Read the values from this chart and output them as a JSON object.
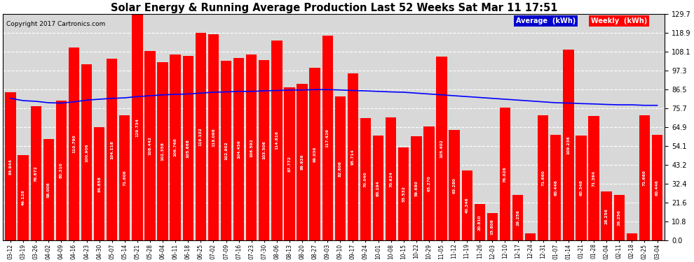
{
  "title": "Solar Energy & Running Average Production Last 52 Weeks Sat Mar 11 17:51",
  "copyright": "Copyright 2017 Cartronics.com",
  "bar_color": "#ff0000",
  "avg_line_color": "#0000ff",
  "background_color": "#ffffff",
  "plot_bg_color": "#d8d8d8",
  "grid_color": "#ffffff",
  "yticks": [
    0.0,
    10.8,
    21.6,
    32.4,
    43.2,
    54.1,
    64.9,
    75.7,
    86.5,
    97.3,
    108.1,
    118.9,
    129.7
  ],
  "legend_avg_label": "Average  (kWh)",
  "legend_weekly_label": "Weekly  (kWh)",
  "legend_avg_color": "#0000cc",
  "legend_weekly_color": "#ff0000",
  "categories": [
    "03-12",
    "03-19",
    "03-26",
    "04-02",
    "04-09",
    "04-16",
    "04-23",
    "04-30",
    "05-07",
    "05-14",
    "05-21",
    "05-28",
    "06-04",
    "06-11",
    "06-18",
    "06-25",
    "07-02",
    "07-09",
    "07-16",
    "07-23",
    "07-30",
    "08-06",
    "08-13",
    "08-20",
    "08-27",
    "09-03",
    "09-10",
    "09-17",
    "09-24",
    "10-01",
    "10-08",
    "10-15",
    "10-22",
    "10-29",
    "11-05",
    "11-12",
    "11-19",
    "11-26",
    "12-03",
    "12-10",
    "12-17",
    "12-24",
    "12-31",
    "01-07",
    "01-14",
    "01-21",
    "01-28",
    "02-04",
    "02-11",
    "02-18",
    "02-25",
    "03-04"
  ],
  "weekly_values": [
    84.944,
    49.128,
    76.872,
    58.008,
    80.31,
    110.79,
    100.906,
    64.858,
    104.118,
    71.606,
    129.734,
    108.442,
    102.358,
    106.766,
    105.668,
    119.102,
    118.098,
    102.902,
    104.456,
    106.592,
    103.506,
    114.816,
    87.772,
    89.926,
    99.036,
    117.426,
    82.606,
    95.714,
    70.04,
    60.194,
    70.624,
    53.532,
    59.68,
    65.27,
    105.402,
    63.28,
    40.346,
    20.81,
    15.808,
    76.026,
    26.256,
    4.312,
    71.66,
    60.446,
    109.236,
    60.348,
    71.364,
    28.256,
    26.256,
    4.312,
    71.66,
    60.446
  ],
  "avg_values": [
    81.5,
    80.2,
    79.8,
    79.0,
    78.8,
    79.5,
    80.5,
    81.0,
    81.5,
    81.8,
    82.5,
    83.0,
    83.5,
    83.8,
    84.0,
    84.5,
    85.0,
    85.2,
    85.5,
    85.5,
    85.8,
    86.0,
    86.2,
    86.3,
    86.5,
    86.5,
    86.3,
    86.0,
    85.8,
    85.5,
    85.2,
    85.0,
    84.5,
    84.0,
    83.5,
    83.0,
    82.5,
    82.0,
    81.5,
    81.0,
    80.5,
    80.0,
    79.5,
    79.0,
    78.8,
    78.5,
    78.3,
    78.0,
    77.8,
    77.8,
    77.5,
    77.5
  ]
}
